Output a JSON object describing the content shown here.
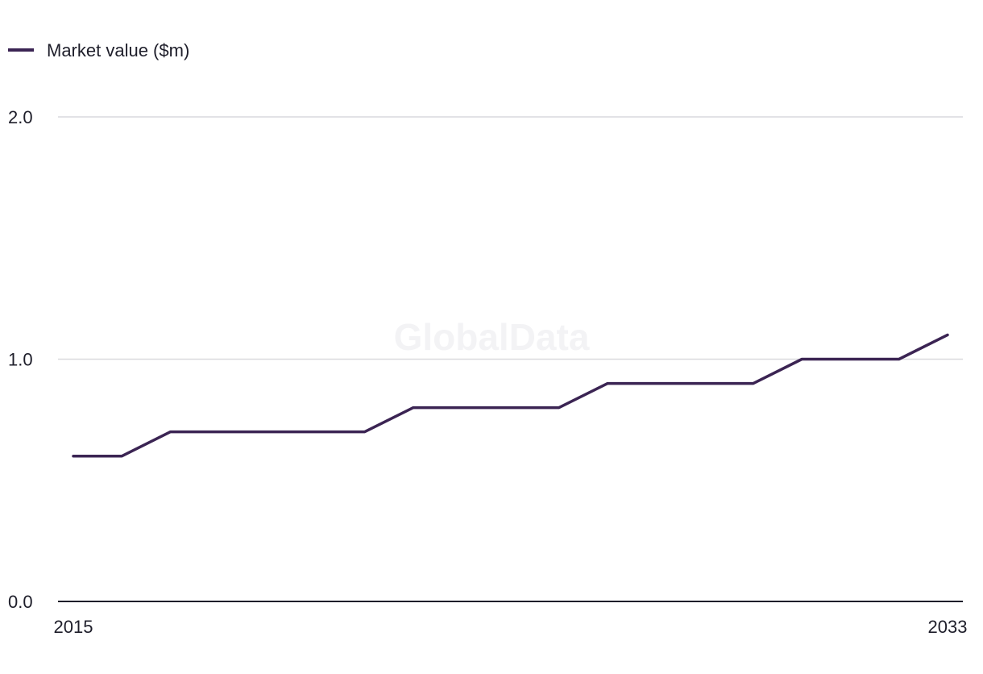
{
  "chart_data": {
    "type": "line",
    "title": "",
    "xlabel": "",
    "ylabel": "",
    "x": [
      2015,
      2016,
      2017,
      2018,
      2019,
      2020,
      2021,
      2022,
      2023,
      2024,
      2025,
      2026,
      2027,
      2028,
      2029,
      2030,
      2031,
      2032,
      2033
    ],
    "x_tick_labels": [
      "2015",
      "2033"
    ],
    "y_ticks": [
      0.0,
      1.0,
      2.0
    ],
    "y_tick_labels": [
      "0.0",
      "1.0",
      "2.0"
    ],
    "ylim": [
      0,
      2
    ],
    "grid": true,
    "legend_position": "top-left",
    "series": [
      {
        "name": "Market value ($m)",
        "color": "#3b2453",
        "values": [
          0.6,
          0.6,
          0.7,
          0.7,
          0.7,
          0.7,
          0.7,
          0.8,
          0.8,
          0.8,
          0.8,
          0.9,
          0.9,
          0.9,
          0.9,
          1.0,
          1.0,
          1.0,
          1.1
        ]
      }
    ],
    "watermark": "GlobalData"
  }
}
